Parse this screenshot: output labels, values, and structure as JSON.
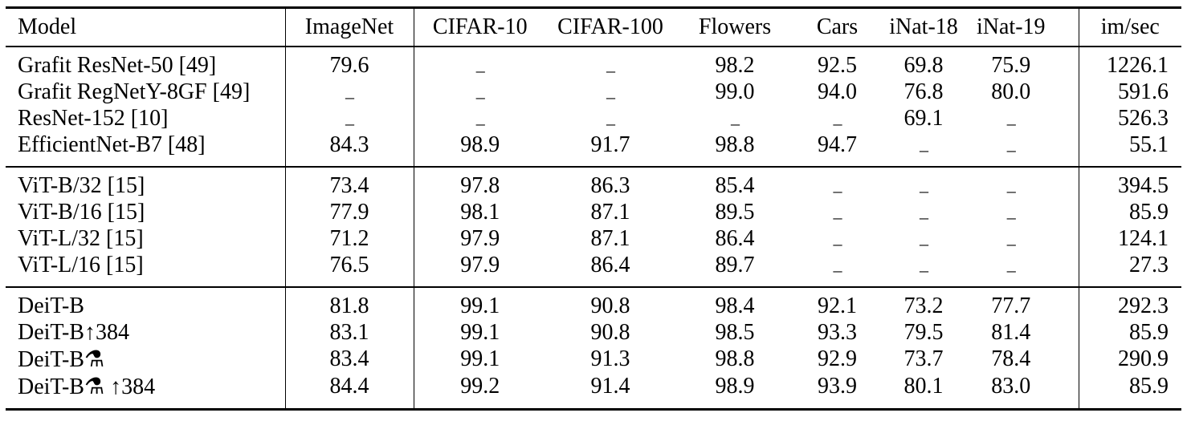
{
  "table": {
    "missing_marker": "–",
    "columns": [
      {
        "label": "Model"
      },
      {
        "label": "ImageNet"
      },
      {
        "label": "CIFAR-10"
      },
      {
        "label": "CIFAR-100"
      },
      {
        "label": "Flowers"
      },
      {
        "label": "Cars"
      },
      {
        "label": "iNat-18"
      },
      {
        "label": "iNat-19"
      },
      {
        "label": "im/sec"
      }
    ],
    "groups": [
      {
        "rows": [
          {
            "model": "Grafit ResNet-50 [49]",
            "values": [
              "79.6",
              "–",
              "–",
              "98.2",
              "92.5",
              "69.8",
              "75.9",
              "1226.1"
            ]
          },
          {
            "model": "Grafit RegNetY-8GF [49]",
            "values": [
              "–",
              "–",
              "–",
              "99.0",
              "94.0",
              "76.8",
              "80.0",
              "591.6"
            ]
          },
          {
            "model": "ResNet-152 [10]",
            "values": [
              "–",
              "–",
              "–",
              "–",
              "–",
              "69.1",
              "–",
              "526.3"
            ]
          },
          {
            "model": "EfficientNet-B7 [48]",
            "values": [
              "84.3",
              "98.9",
              "91.7",
              "98.8",
              "94.7",
              "–",
              "–",
              "55.1"
            ]
          }
        ]
      },
      {
        "rows": [
          {
            "model": "ViT-B/32 [15]",
            "values": [
              "73.4",
              "97.8",
              "86.3",
              "85.4",
              "–",
              "–",
              "–",
              "394.5"
            ]
          },
          {
            "model": "ViT-B/16 [15]",
            "values": [
              "77.9",
              "98.1",
              "87.1",
              "89.5",
              "–",
              "–",
              "–",
              "85.9"
            ]
          },
          {
            "model": "ViT-L/32 [15]",
            "values": [
              "71.2",
              "97.9",
              "87.1",
              "86.4",
              "–",
              "–",
              "–",
              "124.1"
            ]
          },
          {
            "model": "ViT-L/16 [15]",
            "values": [
              "76.5",
              "97.9",
              "86.4",
              "89.7",
              "–",
              "–",
              "–",
              "27.3"
            ]
          }
        ]
      },
      {
        "rows": [
          {
            "model": "DeiT-B",
            "values": [
              "81.8",
              "99.1",
              "90.8",
              "98.4",
              "92.1",
              "73.2",
              "77.7",
              "292.3"
            ]
          },
          {
            "model": "DeiT-B↑384",
            "values": [
              "83.1",
              "99.1",
              "90.8",
              "98.5",
              "93.3",
              "79.5",
              "81.4",
              "85.9"
            ]
          },
          {
            "model": "DeiT-B⚗",
            "values": [
              "83.4",
              "99.1",
              "91.3",
              "98.8",
              "92.9",
              "73.7",
              "78.4",
              "290.9"
            ]
          },
          {
            "model": "DeiT-B⚗ ↑384",
            "values": [
              "84.4",
              "99.2",
              "91.4",
              "98.9",
              "93.9",
              "80.1",
              "83.0",
              "85.9"
            ]
          }
        ]
      }
    ]
  },
  "colors": {
    "text": "#000000",
    "rule": "#000000",
    "background": "#ffffff"
  }
}
